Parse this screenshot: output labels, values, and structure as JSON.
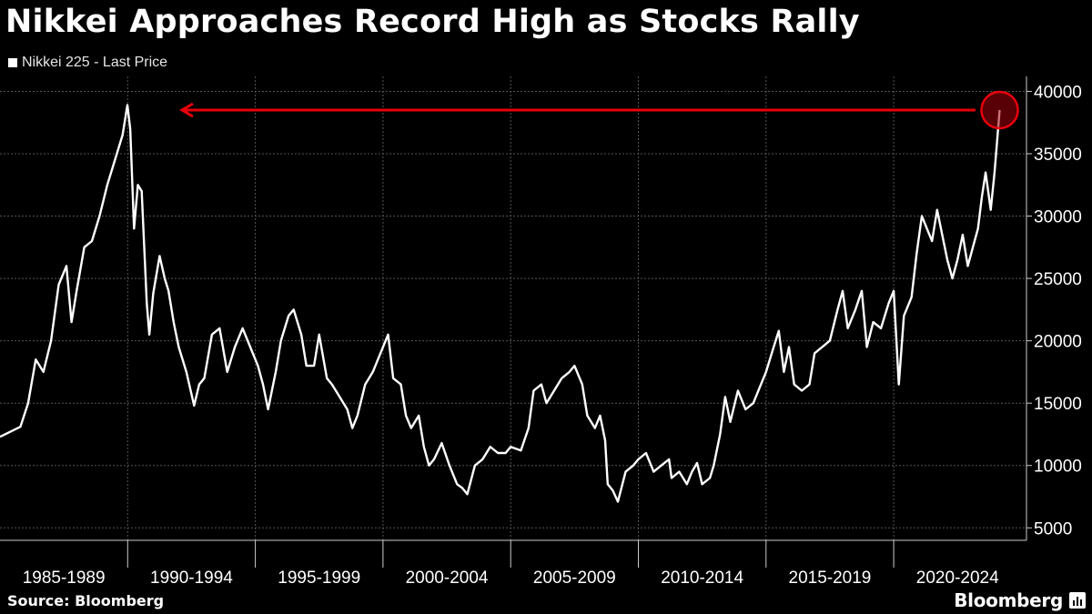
{
  "chart_data": {
    "type": "line",
    "title": "Nikkei Approaches Record High as Stocks Rally",
    "legend_position": "top-left",
    "series": [
      {
        "name": "Nikkei 225 - Last Price",
        "color": "#ffffff",
        "points": [
          [
            1985.0,
            12300
          ],
          [
            1985.4,
            12700
          ],
          [
            1985.8,
            13100
          ],
          [
            1986.1,
            15000
          ],
          [
            1986.4,
            18500
          ],
          [
            1986.7,
            17500
          ],
          [
            1987.0,
            20000
          ],
          [
            1987.3,
            24500
          ],
          [
            1987.6,
            26000
          ],
          [
            1987.8,
            21500
          ],
          [
            1988.0,
            24000
          ],
          [
            1988.3,
            27500
          ],
          [
            1988.6,
            28000
          ],
          [
            1988.9,
            30000
          ],
          [
            1989.2,
            32500
          ],
          [
            1989.5,
            34500
          ],
          [
            1989.8,
            36500
          ],
          [
            1989.99,
            38900
          ],
          [
            1990.1,
            37000
          ],
          [
            1990.25,
            29000
          ],
          [
            1990.4,
            32500
          ],
          [
            1990.55,
            32000
          ],
          [
            1990.75,
            23000
          ],
          [
            1990.85,
            20500
          ],
          [
            1991.0,
            23800
          ],
          [
            1991.25,
            26800
          ],
          [
            1991.45,
            25000
          ],
          [
            1991.6,
            24000
          ],
          [
            1991.8,
            21500
          ],
          [
            1992.0,
            19500
          ],
          [
            1992.3,
            17500
          ],
          [
            1992.6,
            14800
          ],
          [
            1992.8,
            16500
          ],
          [
            1993.0,
            17000
          ],
          [
            1993.3,
            20500
          ],
          [
            1993.6,
            21000
          ],
          [
            1993.9,
            17500
          ],
          [
            1994.2,
            19500
          ],
          [
            1994.5,
            21000
          ],
          [
            1994.8,
            19500
          ],
          [
            1995.1,
            18000
          ],
          [
            1995.3,
            16500
          ],
          [
            1995.5,
            14500
          ],
          [
            1995.8,
            17500
          ],
          [
            1996.0,
            20000
          ],
          [
            1996.3,
            22000
          ],
          [
            1996.5,
            22500
          ],
          [
            1996.8,
            20500
          ],
          [
            1997.0,
            18000
          ],
          [
            1997.3,
            18000
          ],
          [
            1997.5,
            20500
          ],
          [
            1997.8,
            17000
          ],
          [
            1998.0,
            16500
          ],
          [
            1998.3,
            15500
          ],
          [
            1998.6,
            14500
          ],
          [
            1998.8,
            13000
          ],
          [
            1999.0,
            14000
          ],
          [
            1999.3,
            16500
          ],
          [
            1999.6,
            17500
          ],
          [
            1999.8,
            18500
          ],
          [
            2000.2,
            20500
          ],
          [
            2000.4,
            17000
          ],
          [
            2000.7,
            16500
          ],
          [
            2000.9,
            14000
          ],
          [
            2001.1,
            13000
          ],
          [
            2001.4,
            14000
          ],
          [
            2001.6,
            11500
          ],
          [
            2001.8,
            10000
          ],
          [
            2002.0,
            10500
          ],
          [
            2002.3,
            11800
          ],
          [
            2002.6,
            10000
          ],
          [
            2002.9,
            8500
          ],
          [
            2003.1,
            8200
          ],
          [
            2003.3,
            7700
          ],
          [
            2003.6,
            10000
          ],
          [
            2003.9,
            10500
          ],
          [
            2004.2,
            11500
          ],
          [
            2004.5,
            11000
          ],
          [
            2004.8,
            11000
          ],
          [
            2005.0,
            11500
          ],
          [
            2005.4,
            11200
          ],
          [
            2005.7,
            13000
          ],
          [
            2005.9,
            16000
          ],
          [
            2006.2,
            16500
          ],
          [
            2006.4,
            15000
          ],
          [
            2006.7,
            16000
          ],
          [
            2007.0,
            17000
          ],
          [
            2007.3,
            17500
          ],
          [
            2007.5,
            18000
          ],
          [
            2007.8,
            16500
          ],
          [
            2008.0,
            14000
          ],
          [
            2008.3,
            13000
          ],
          [
            2008.5,
            14000
          ],
          [
            2008.7,
            12000
          ],
          [
            2008.8,
            8500
          ],
          [
            2009.0,
            8000
          ],
          [
            2009.2,
            7100
          ],
          [
            2009.5,
            9500
          ],
          [
            2009.8,
            10000
          ],
          [
            2010.0,
            10500
          ],
          [
            2010.3,
            11000
          ],
          [
            2010.6,
            9500
          ],
          [
            2010.9,
            10000
          ],
          [
            2011.2,
            10500
          ],
          [
            2011.3,
            9000
          ],
          [
            2011.6,
            9500
          ],
          [
            2011.9,
            8500
          ],
          [
            2012.1,
            9500
          ],
          [
            2012.3,
            10200
          ],
          [
            2012.5,
            8500
          ],
          [
            2012.8,
            9000
          ],
          [
            2012.95,
            10000
          ],
          [
            2013.2,
            12500
          ],
          [
            2013.4,
            15500
          ],
          [
            2013.6,
            13500
          ],
          [
            2013.9,
            16000
          ],
          [
            2014.2,
            14500
          ],
          [
            2014.5,
            15000
          ],
          [
            2014.8,
            16500
          ],
          [
            2015.0,
            17500
          ],
          [
            2015.3,
            19500
          ],
          [
            2015.5,
            20800
          ],
          [
            2015.7,
            17500
          ],
          [
            2015.9,
            19500
          ],
          [
            2016.1,
            16500
          ],
          [
            2016.4,
            16000
          ],
          [
            2016.7,
            16500
          ],
          [
            2016.9,
            19000
          ],
          [
            2017.2,
            19500
          ],
          [
            2017.5,
            20000
          ],
          [
            2017.8,
            22500
          ],
          [
            2018.0,
            24000
          ],
          [
            2018.2,
            21000
          ],
          [
            2018.5,
            22500
          ],
          [
            2018.75,
            24000
          ],
          [
            2018.95,
            19500
          ],
          [
            2019.2,
            21500
          ],
          [
            2019.5,
            21000
          ],
          [
            2019.8,
            23000
          ],
          [
            2020.0,
            24000
          ],
          [
            2020.2,
            16500
          ],
          [
            2020.4,
            22000
          ],
          [
            2020.7,
            23500
          ],
          [
            2020.9,
            27000
          ],
          [
            2021.1,
            30000
          ],
          [
            2021.3,
            29000
          ],
          [
            2021.5,
            28000
          ],
          [
            2021.7,
            30500
          ],
          [
            2021.9,
            28500
          ],
          [
            2022.1,
            26500
          ],
          [
            2022.3,
            25000
          ],
          [
            2022.5,
            26500
          ],
          [
            2022.7,
            28500
          ],
          [
            2022.9,
            26000
          ],
          [
            2023.1,
            27500
          ],
          [
            2023.3,
            29000
          ],
          [
            2023.45,
            31500
          ],
          [
            2023.6,
            33500
          ],
          [
            2023.8,
            30500
          ],
          [
            2023.95,
            33500
          ],
          [
            2024.05,
            36000
          ],
          [
            2024.15,
            38500
          ]
        ]
      }
    ],
    "legend": [
      {
        "label": "Nikkei 225 - Last Price"
      }
    ],
    "annotations": {
      "arrow_color": "#e8000b",
      "arrow_value": 38500,
      "marker_value": 38500,
      "marker_x": 2024.15
    },
    "x_categories": [
      "1985-1989",
      "1990-1994",
      "1995-1999",
      "2000-2004",
      "2005-2009",
      "2010-2014",
      "2015-2019",
      "2020-2024"
    ],
    "xlim": [
      1985.0,
      2025.2
    ],
    "y_ticks": [
      "5000",
      "10000",
      "15000",
      "20000",
      "25000",
      "30000",
      "35000",
      "40000"
    ],
    "ylim": [
      4000,
      41200
    ],
    "grid": true,
    "colors": {
      "background": "#000000",
      "line": "#ffffff",
      "grid": "#555555",
      "accent": "#e8000b"
    }
  },
  "footer": {
    "source": "Source: Bloomberg",
    "brand": "Bloomberg"
  }
}
